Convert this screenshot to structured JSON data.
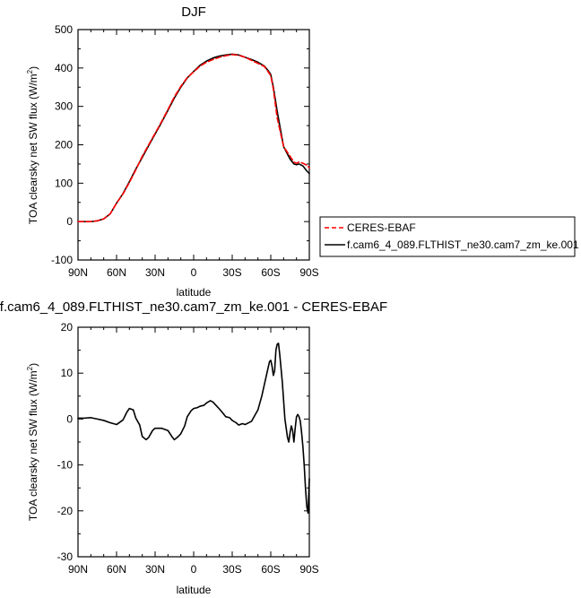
{
  "chart_data": [
    {
      "type": "line",
      "title": "DJF",
      "xlabel": "latitude",
      "ylabel": "TOA clearsky net SW flux (W/m",
      "ylabel_sup": "2",
      "ylabel_close": ")",
      "xlim": [
        90,
        -90
      ],
      "ylim": [
        -100,
        500
      ],
      "x_ticks": [
        90,
        60,
        30,
        0,
        -30,
        -60,
        -90
      ],
      "x_tick_labels": [
        "90N",
        "60N",
        "30N",
        "0",
        "30S",
        "60S",
        "90S"
      ],
      "y_ticks": [
        -100,
        0,
        100,
        200,
        300,
        400,
        500
      ],
      "y_tick_labels": [
        "-100",
        "0",
        "100",
        "200",
        "300",
        "400",
        "500"
      ],
      "legend_position": "right, outside plot",
      "series": [
        {
          "name": "CERES-EBAF",
          "color": "#ff0000",
          "dash": "dashed",
          "lat": [
            90,
            85,
            80,
            75,
            70,
            65,
            60,
            55,
            50,
            45,
            40,
            35,
            30,
            25,
            20,
            15,
            10,
            5,
            0,
            -5,
            -10,
            -15,
            -20,
            -25,
            -30,
            -35,
            -40,
            -45,
            -50,
            -55,
            -58,
            -60,
            -62,
            -65,
            -70,
            -75,
            -78,
            -80,
            -82,
            -85,
            -88,
            -90
          ],
          "values": [
            0,
            0,
            0,
            2,
            7,
            20,
            48,
            72,
            102,
            135,
            170,
            200,
            230,
            260,
            292,
            325,
            352,
            375,
            390,
            405,
            415,
            422,
            428,
            432,
            435,
            433,
            428,
            420,
            412,
            404,
            390,
            380,
            345,
            270,
            195,
            170,
            155,
            152,
            155,
            152,
            147,
            140
          ]
        },
        {
          "name": "f.cam6_4_089.FLTHIST_ne30.cam7_zm_ke.001",
          "color": "#000000",
          "dash": "solid",
          "lat": [
            90,
            85,
            80,
            75,
            70,
            65,
            60,
            55,
            50,
            45,
            40,
            35,
            30,
            25,
            20,
            15,
            10,
            5,
            0,
            -5,
            -10,
            -15,
            -20,
            -25,
            -30,
            -35,
            -40,
            -45,
            -50,
            -55,
            -58,
            -60,
            -62,
            -65,
            -70,
            -75,
            -78,
            -80,
            -82,
            -85,
            -88,
            -90
          ],
          "values": [
            0,
            0,
            0,
            2,
            7,
            20,
            48,
            73,
            104,
            137,
            167,
            198,
            228,
            258,
            290,
            322,
            350,
            374,
            391,
            407,
            418,
            426,
            431,
            434,
            436,
            434,
            428,
            422,
            415,
            405,
            393,
            383,
            350,
            287,
            195,
            163,
            150,
            148,
            150,
            145,
            132,
            125
          ]
        }
      ]
    },
    {
      "type": "line",
      "title": "f.cam6_4_089.FLTHIST_ne30.cam7_zm_ke.001 - CERES-EBAF",
      "xlabel": "latitude",
      "ylabel": "TOA clearsky net SW flux (W/m",
      "ylabel_sup": "2",
      "ylabel_close": ")",
      "xlim": [
        90,
        -90
      ],
      "ylim": [
        -30,
        20
      ],
      "x_ticks": [
        90,
        60,
        30,
        0,
        -30,
        -60,
        -90
      ],
      "x_tick_labels": [
        "90N",
        "60N",
        "30N",
        "0",
        "30S",
        "60S",
        "90S"
      ],
      "y_ticks": [
        -30,
        -20,
        -10,
        0,
        10,
        20
      ],
      "y_tick_labels": [
        "-30",
        "-20",
        "-10",
        "0",
        "10",
        "20"
      ],
      "series": [
        {
          "name": "f.cam6_4_089.FLTHIST_ne30.cam7_zm_ke.001 - CERES-EBAF",
          "color": "#000000",
          "dash": "solid",
          "lat": [
            90,
            85,
            80,
            75,
            70,
            65,
            60,
            55,
            52,
            50,
            47,
            45,
            42,
            40,
            37,
            35,
            32,
            30,
            25,
            20,
            17,
            15,
            12,
            10,
            7,
            5,
            2,
            0,
            -3,
            -5,
            -8,
            -10,
            -13,
            -15,
            -18,
            -20,
            -23,
            -25,
            -28,
            -30,
            -33,
            -35,
            -38,
            -40,
            -45,
            -50,
            -53,
            -55,
            -57,
            -59,
            -60,
            -61,
            -62,
            -63,
            -64,
            -65,
            -66,
            -67,
            -68,
            -69,
            -70,
            -71,
            -72,
            -73,
            -74,
            -75,
            -76,
            -77,
            -78,
            -79,
            -80,
            -81,
            -82,
            -83,
            -84,
            -85,
            -86,
            -87,
            -88,
            -89,
            -90
          ],
          "values": [
            0.2,
            0.2,
            0.3,
            0,
            -0.3,
            -0.8,
            -1.2,
            -0.2,
            1.5,
            2.3,
            2.0,
            0.2,
            -1.3,
            -3.8,
            -4.5,
            -4.0,
            -2.5,
            -2.0,
            -2.0,
            -2.5,
            -3.8,
            -4.5,
            -3.8,
            -3.2,
            -1.5,
            0.5,
            1.8,
            2.3,
            2.5,
            2.8,
            3.0,
            3.5,
            4.0,
            3.7,
            2.8,
            2.2,
            1.2,
            0.5,
            0.3,
            -0.3,
            -0.8,
            -1.3,
            -1.0,
            -1.2,
            -0.5,
            2.0,
            5.0,
            7.5,
            10,
            12.5,
            12.8,
            11.5,
            9.5,
            10.5,
            15.0,
            16.3,
            16.5,
            14,
            11,
            8,
            4,
            0,
            -2,
            -4,
            -5,
            -3,
            -1.5,
            -2.5,
            -5,
            -2,
            0.5,
            1,
            0.5,
            -0.5,
            -3,
            -6,
            -10,
            -15,
            -19,
            -20.5,
            -13
          ]
        }
      ]
    }
  ]
}
